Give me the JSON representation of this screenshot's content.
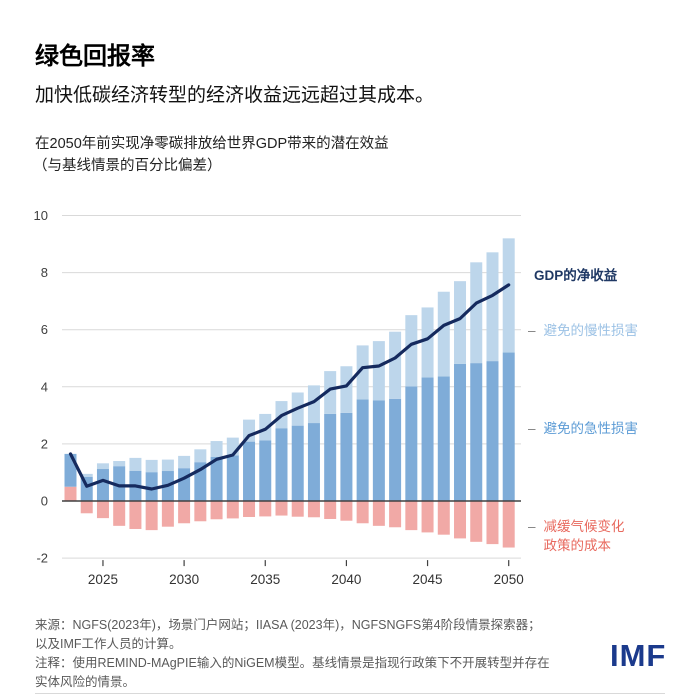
{
  "header": {
    "title": "绿色回报率",
    "subtitle": "加快低碳经济转型的经济收益远远超过其成本。"
  },
  "chart": {
    "desc_line1": "在2050年前实现净零碳排放给世界GDP带来的潜在效益",
    "desc_line2": "（与基线情景的百分比偏差）"
  },
  "legend": {
    "dash": "–",
    "net": "GDP的净收益",
    "chronic": "避免的慢性损害",
    "acute": "避免的急性损害",
    "cost_line1": "减缓气候变化",
    "cost_line2": "政策的成本"
  },
  "footer": {
    "source_line1": "来源：NGFS(2023年)，场景门户网站；IIASA (2023年)，NGFSNGFS第4阶段情景探索器；",
    "source_line2": "以及IMF工作人员的计算。",
    "note_line1": "注释：使用REMIND-MAgPIE输入的NiGEM模型。基线情景是指现行政策下不开展转型并存在",
    "note_line2": "实体风险的情景。",
    "logo": "IMF"
  },
  "colors": {
    "chronic_bar": "#BDD6EB",
    "acute_bar": "#7FACD8",
    "cost_bar": "#F1A9A6",
    "net_line": "#152A5E",
    "gridline": "#d9d9d9",
    "zero_line": "#404040",
    "axis_text": "#404040",
    "legend_net_text": "#1F3864",
    "legend_chronic_text": "#9CC2E5",
    "legend_acute_text": "#5B9BD5",
    "legend_cost_text": "#E8695E",
    "imf_blue": "#1B3A8C"
  },
  "chart_data": {
    "type": "bar",
    "subtype": "stacked-bars-with-net-line",
    "title": "在2050年前实现净零碳排放给世界GDP带来的潜在效益（与基线情景的百分比偏差）",
    "xlabel": "",
    "ylabel": "",
    "ylim": [
      -2,
      10
    ],
    "yticks": [
      10,
      8,
      6,
      4,
      2,
      0,
      -2
    ],
    "xticks": [
      2025,
      2030,
      2035,
      2040,
      2045,
      2050
    ],
    "grid": true,
    "legend_position": "right",
    "years": [
      2023,
      2024,
      2025,
      2026,
      2027,
      2028,
      2029,
      2030,
      2031,
      2032,
      2033,
      2034,
      2035,
      2036,
      2037,
      2038,
      2039,
      2040,
      2041,
      2042,
      2043,
      2044,
      2045,
      2046,
      2047,
      2048,
      2049,
      2050
    ],
    "series": [
      {
        "name": "避免的急性损害",
        "role": "acute",
        "type": "bar-stack",
        "values": [
          1.15,
          0.85,
          1.12,
          1.22,
          1.06,
          1.01,
          1.05,
          1.15,
          1.36,
          1.55,
          1.6,
          2.08,
          2.12,
          2.55,
          2.64,
          2.73,
          3.05,
          3.09,
          3.56,
          3.52,
          3.58,
          4.01,
          4.33,
          4.36,
          4.8,
          4.83,
          4.9,
          5.2
        ]
      },
      {
        "name": "避免的慢性损害",
        "role": "chronic",
        "type": "bar-stack",
        "values": [
          0.0,
          0.1,
          0.2,
          0.18,
          0.45,
          0.43,
          0.4,
          0.43,
          0.45,
          0.55,
          0.62,
          0.77,
          0.93,
          0.95,
          1.16,
          1.32,
          1.5,
          1.63,
          1.89,
          2.08,
          2.35,
          2.5,
          2.45,
          2.97,
          2.9,
          3.53,
          3.81,
          4.0
        ]
      },
      {
        "name": "减缓气候变化政策的成本",
        "role": "cost",
        "type": "bar-stack",
        "values": [
          0.5,
          -0.43,
          -0.6,
          -0.87,
          -0.98,
          -1.02,
          -0.9,
          -0.78,
          -0.71,
          -0.64,
          -0.61,
          -0.56,
          -0.54,
          -0.51,
          -0.55,
          -0.57,
          -0.63,
          -0.69,
          -0.78,
          -0.87,
          -0.92,
          -1.02,
          -1.1,
          -1.18,
          -1.31,
          -1.43,
          -1.51,
          -1.63
        ]
      },
      {
        "name": "GDP的净收益",
        "role": "net",
        "type": "line",
        "values": [
          1.65,
          0.52,
          0.72,
          0.53,
          0.53,
          0.42,
          0.55,
          0.8,
          1.1,
          1.46,
          1.61,
          2.29,
          2.51,
          2.99,
          3.25,
          3.48,
          3.92,
          4.03,
          4.67,
          4.73,
          5.01,
          5.49,
          5.68,
          6.15,
          6.39,
          6.93,
          7.2,
          7.57
        ]
      }
    ]
  }
}
